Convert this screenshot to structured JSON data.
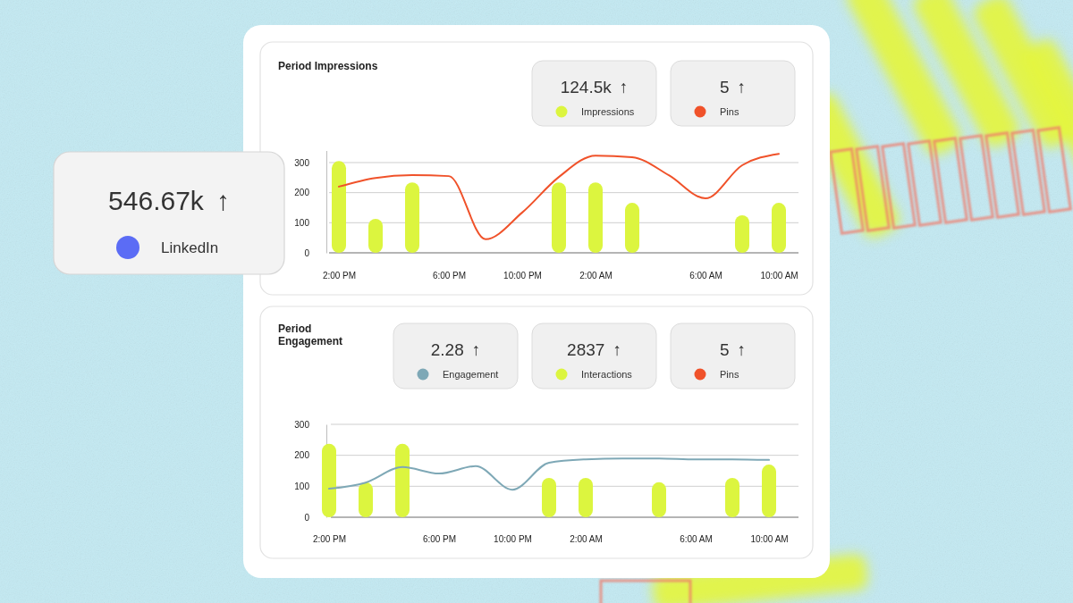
{
  "chart_data": [
    {
      "type": "bar",
      "title": "Period Impressions",
      "categories": [
        "2:00 PM",
        null,
        null,
        "6:00 PM",
        null,
        "10:00 PM",
        null,
        "2:00 AM",
        null,
        null,
        "6:00 AM",
        null,
        "10:00 AM"
      ],
      "series": [
        {
          "name": "Impressions",
          "type": "bar",
          "color": "#dcf53f",
          "values": [
            305,
            113,
            234,
            null,
            null,
            null,
            234,
            234,
            166,
            null,
            null,
            125,
            166
          ]
        },
        {
          "name": "Pins",
          "type": "line",
          "color": "#f0522a",
          "values": [
            220,
            249,
            258,
            255,
            45,
            134,
            252,
            323,
            318,
            258,
            181,
            291,
            329
          ]
        }
      ],
      "ylim": [
        0,
        340
      ],
      "yticks": [
        0,
        100,
        200,
        300
      ],
      "grid": true
    },
    {
      "type": "bar",
      "title": "Period Engagement",
      "categories": [
        "2:00 PM",
        null,
        null,
        "6:00 PM",
        null,
        "10:00 PM",
        null,
        "2:00 AM",
        null,
        null,
        "6:00 AM",
        null,
        "10:00 AM"
      ],
      "series": [
        {
          "name": "Interactions",
          "type": "bar",
          "color": "#dcf53f",
          "values": [
            237,
            113,
            237,
            null,
            null,
            null,
            127,
            127,
            null,
            113,
            null,
            127,
            170
          ]
        },
        {
          "name": "Engagement",
          "type": "line",
          "color": "#7ea8b6",
          "values": [
            92,
            112,
            162,
            141,
            165,
            89,
            176,
            187,
            190,
            190,
            187,
            187,
            185
          ]
        }
      ],
      "ylim": [
        0,
        300
      ],
      "yticks": [
        0,
        100,
        200,
        300
      ],
      "grid": true
    }
  ],
  "stat_cards": [
    [
      {
        "value": "124.5k",
        "trend": "↑",
        "label": "Impressions",
        "color": "#dcf53f"
      },
      {
        "value": "5",
        "trend": "↑",
        "label": "Pins",
        "color": "#f0522a"
      }
    ],
    [
      {
        "value": "2.28",
        "trend": "↑",
        "label": "Engagement",
        "color": "#7ea8b6"
      },
      {
        "value": "2837",
        "trend": "↑",
        "label": "Interactions",
        "color": "#dcf53f"
      },
      {
        "value": "5",
        "trend": "↑",
        "label": "Pins",
        "color": "#f0522a"
      }
    ]
  ],
  "highlight_card": {
    "value": "546.67k",
    "trend": "↑",
    "label": "LinkedIn",
    "color": "#5b6cf5"
  }
}
